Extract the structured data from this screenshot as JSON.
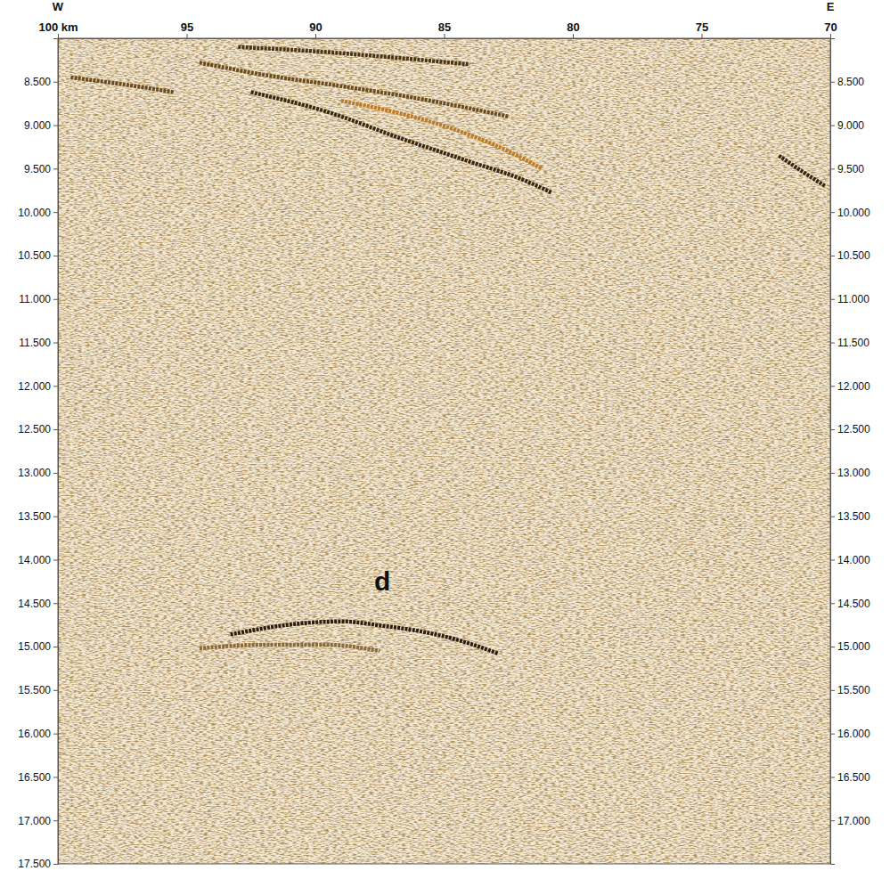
{
  "chart_data": {
    "type": "line",
    "direction_labels": {
      "left": "W",
      "right": "E"
    },
    "xlim": [
      100,
      70
    ],
    "xticks": [
      {
        "value": 100,
        "label": "100 km"
      },
      95,
      90,
      85,
      80,
      75,
      70
    ],
    "ylim": [
      8.0,
      17.5
    ],
    "yticks": [
      {
        "value": 8.5,
        "label": "8.500"
      },
      {
        "value": 9.0,
        "label": "9.000"
      },
      {
        "value": 9.5,
        "label": "9.500"
      },
      {
        "value": 10.0,
        "label": "10.000"
      },
      {
        "value": 10.5,
        "label": "10.500"
      },
      {
        "value": 11.0,
        "label": "11.000"
      },
      {
        "value": 11.5,
        "label": "11.500"
      },
      {
        "value": 12.0,
        "label": "12.000"
      },
      {
        "value": 12.5,
        "label": "12.500"
      },
      {
        "value": 13.0,
        "label": "13.000"
      },
      {
        "value": 13.5,
        "label": "13.500"
      },
      {
        "value": 14.0,
        "label": "14.000"
      },
      {
        "value": 14.5,
        "label": "14.500"
      },
      {
        "value": 15.0,
        "label": "15.000"
      },
      {
        "value": 15.5,
        "label": "15.500"
      },
      {
        "value": 16.0,
        "label": "16.000"
      },
      {
        "value": 16.5,
        "label": "16.500"
      },
      {
        "value": 17.0,
        "label": "17.000"
      },
      {
        "value": 17.5,
        "label": "17.500"
      }
    ],
    "y2lim": [
      8.0,
      17.5
    ],
    "y2ticks": [
      {
        "value": 8.5,
        "label": "8.500"
      },
      {
        "value": 9.0,
        "label": "9.000"
      },
      {
        "value": 9.5,
        "label": "9.500"
      },
      {
        "value": 10.0,
        "label": "10.000"
      },
      {
        "value": 10.5,
        "label": "10.500"
      },
      {
        "value": 11.0,
        "label": "11.000"
      },
      {
        "value": 11.5,
        "label": "11.500"
      },
      {
        "value": 12.0,
        "label": "12.000"
      },
      {
        "value": 12.5,
        "label": "12.500"
      },
      {
        "value": 13.0,
        "label": "13.000"
      },
      {
        "value": 13.5,
        "label": "13.500"
      },
      {
        "value": 14.0,
        "label": "14.000"
      },
      {
        "value": 14.5,
        "label": "14.500"
      },
      {
        "value": 15.0,
        "label": "15.000"
      },
      {
        "value": 15.5,
        "label": "15.500"
      },
      {
        "value": 16.0,
        "label": "16.000"
      },
      {
        "value": 16.5,
        "label": "16.500"
      },
      {
        "value": 17.0,
        "label": "17.000"
      }
    ],
    "series": [
      {
        "x": [
          93.3,
          90.8,
          89.0,
          87.4,
          85.8,
          84.4,
          82.9
        ],
        "values": [
          14.86,
          14.74,
          14.71,
          14.76,
          14.83,
          14.93,
          15.08
        ],
        "color": "#2b1d0e"
      },
      {
        "x": [
          94.5,
          92.0,
          89.5,
          87.5
        ],
        "values": [
          15.02,
          14.98,
          14.98,
          15.05
        ],
        "color": "#8a6a3a"
      },
      {
        "x": [
          92.5,
          89.5,
          86.7,
          84.0,
          82.0,
          80.8
        ],
        "values": [
          8.62,
          8.85,
          9.15,
          9.42,
          9.62,
          9.78
        ],
        "color": "#3a2710"
      },
      {
        "x": [
          89.0,
          86.5,
          84.3,
          82.5,
          81.2
        ],
        "values": [
          8.72,
          8.88,
          9.08,
          9.3,
          9.5
        ],
        "color": "#c07a22"
      },
      {
        "x": [
          94.5,
          92.0,
          89.0,
          85.5,
          82.5
        ],
        "values": [
          8.28,
          8.42,
          8.55,
          8.72,
          8.9
        ],
        "color": "#6b4a1e"
      },
      {
        "x": [
          93.0,
          90.0,
          87.0,
          84.0
        ],
        "values": [
          8.1,
          8.15,
          8.22,
          8.3
        ],
        "color": "#4a3214"
      },
      {
        "x": [
          72.0,
          71.0,
          70.2
        ],
        "values": [
          9.35,
          9.55,
          9.7
        ],
        "color": "#3a2710"
      },
      {
        "x": [
          99.5,
          97.0,
          95.5
        ],
        "values": [
          8.45,
          8.55,
          8.62
        ],
        "color": "#6b4a1e"
      }
    ],
    "annotations": [
      {
        "text": "d",
        "x": 87.4,
        "y": 14.27
      }
    ]
  }
}
